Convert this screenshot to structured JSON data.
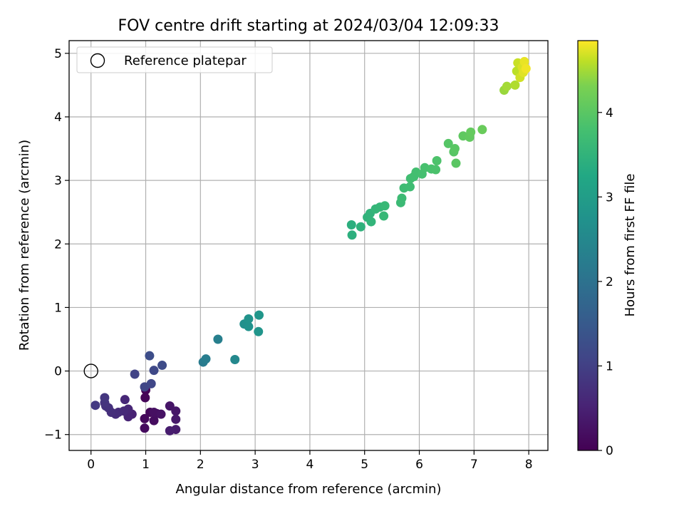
{
  "chart_data": {
    "type": "scatter",
    "title": "FOV centre drift starting at 2024/03/04 12:09:33",
    "xlabel": "Angular distance from reference (arcmin)",
    "ylabel": "Rotation from reference (arcmin)",
    "xlim": [
      -0.4,
      8.35
    ],
    "ylim": [
      -1.25,
      5.2
    ],
    "xticks": [
      0,
      1,
      2,
      3,
      4,
      5,
      6,
      7,
      8
    ],
    "yticks": [
      -1,
      0,
      1,
      2,
      3,
      4,
      5
    ],
    "grid": true,
    "legend": {
      "position": "upper-left",
      "entries": [
        "Reference platepar"
      ]
    },
    "colorbar": {
      "label": "Hours from first FF file",
      "range": [
        0,
        4.85
      ],
      "ticks": [
        0,
        1,
        2,
        3,
        4
      ],
      "colormap": "viridis"
    },
    "reference_point": {
      "x": 0,
      "y": 0
    },
    "points": [
      {
        "x": 1.0,
        "y": -0.3,
        "h": 0.05
      },
      {
        "x": 0.99,
        "y": -0.42,
        "h": 0.07
      },
      {
        "x": 1.08,
        "y": -0.65,
        "h": 0.1
      },
      {
        "x": 0.98,
        "y": -0.75,
        "h": 0.12
      },
      {
        "x": 0.98,
        "y": -0.9,
        "h": 0.15
      },
      {
        "x": 1.15,
        "y": -0.78,
        "h": 0.18
      },
      {
        "x": 1.2,
        "y": -0.67,
        "h": 0.2
      },
      {
        "x": 1.15,
        "y": -0.65,
        "h": 0.23
      },
      {
        "x": 1.28,
        "y": -0.68,
        "h": 0.26
      },
      {
        "x": 1.44,
        "y": -0.55,
        "h": 0.3
      },
      {
        "x": 1.55,
        "y": -0.63,
        "h": 0.33
      },
      {
        "x": 1.55,
        "y": -0.76,
        "h": 0.36
      },
      {
        "x": 1.55,
        "y": -0.92,
        "h": 0.39
      },
      {
        "x": 1.44,
        "y": -0.94,
        "h": 0.42
      },
      {
        "x": 0.75,
        "y": -0.68,
        "h": 0.5
      },
      {
        "x": 0.68,
        "y": -0.72,
        "h": 0.53
      },
      {
        "x": 0.68,
        "y": -0.6,
        "h": 0.56
      },
      {
        "x": 0.62,
        "y": -0.45,
        "h": 0.59
      },
      {
        "x": 0.6,
        "y": -0.63,
        "h": 0.62
      },
      {
        "x": 0.5,
        "y": -0.65,
        "h": 0.65
      },
      {
        "x": 0.45,
        "y": -0.68,
        "h": 0.68
      },
      {
        "x": 0.37,
        "y": -0.65,
        "h": 0.71
      },
      {
        "x": 0.32,
        "y": -0.58,
        "h": 0.74
      },
      {
        "x": 0.27,
        "y": -0.55,
        "h": 0.77
      },
      {
        "x": 0.25,
        "y": -0.5,
        "h": 0.8
      },
      {
        "x": 0.25,
        "y": -0.42,
        "h": 0.83
      },
      {
        "x": 0.08,
        "y": -0.54,
        "h": 0.88
      },
      {
        "x": 0.8,
        "y": -0.05,
        "h": 1.05
      },
      {
        "x": 0.98,
        "y": -0.25,
        "h": 1.1
      },
      {
        "x": 1.1,
        "y": -0.2,
        "h": 1.13
      },
      {
        "x": 1.15,
        "y": 0.01,
        "h": 1.17
      },
      {
        "x": 1.3,
        "y": 0.09,
        "h": 1.2
      },
      {
        "x": 1.07,
        "y": 0.24,
        "h": 1.24
      },
      {
        "x": 2.05,
        "y": 0.14,
        "h": 2.2
      },
      {
        "x": 2.1,
        "y": 0.19,
        "h": 2.25
      },
      {
        "x": 2.32,
        "y": 0.5,
        "h": 2.3
      },
      {
        "x": 2.63,
        "y": 0.18,
        "h": 2.5
      },
      {
        "x": 2.8,
        "y": 0.74,
        "h": 2.7
      },
      {
        "x": 2.88,
        "y": 0.7,
        "h": 2.73
      },
      {
        "x": 2.88,
        "y": 0.82,
        "h": 2.76
      },
      {
        "x": 3.06,
        "y": 0.62,
        "h": 2.8
      },
      {
        "x": 3.07,
        "y": 0.88,
        "h": 2.83
      },
      {
        "x": 4.76,
        "y": 2.3,
        "h": 3.4
      },
      {
        "x": 4.77,
        "y": 2.14,
        "h": 3.42
      },
      {
        "x": 4.93,
        "y": 2.27,
        "h": 3.45
      },
      {
        "x": 5.05,
        "y": 2.42,
        "h": 3.48
      },
      {
        "x": 5.1,
        "y": 2.48,
        "h": 3.5
      },
      {
        "x": 5.12,
        "y": 2.35,
        "h": 3.52
      },
      {
        "x": 5.2,
        "y": 2.55,
        "h": 3.55
      },
      {
        "x": 5.28,
        "y": 2.58,
        "h": 3.57
      },
      {
        "x": 5.35,
        "y": 2.44,
        "h": 3.59
      },
      {
        "x": 5.37,
        "y": 2.6,
        "h": 3.61
      },
      {
        "x": 5.66,
        "y": 2.65,
        "h": 3.65
      },
      {
        "x": 5.68,
        "y": 2.72,
        "h": 3.67
      },
      {
        "x": 5.72,
        "y": 2.88,
        "h": 3.69
      },
      {
        "x": 5.83,
        "y": 2.9,
        "h": 3.71
      },
      {
        "x": 5.84,
        "y": 3.03,
        "h": 3.73
      },
      {
        "x": 5.9,
        "y": 3.06,
        "h": 3.75
      },
      {
        "x": 5.94,
        "y": 3.13,
        "h": 3.77
      },
      {
        "x": 6.05,
        "y": 3.1,
        "h": 3.79
      },
      {
        "x": 6.1,
        "y": 3.2,
        "h": 3.81
      },
      {
        "x": 6.22,
        "y": 3.18,
        "h": 3.83
      },
      {
        "x": 6.3,
        "y": 3.17,
        "h": 3.85
      },
      {
        "x": 6.32,
        "y": 3.31,
        "h": 3.87
      },
      {
        "x": 6.53,
        "y": 3.58,
        "h": 3.95
      },
      {
        "x": 6.63,
        "y": 3.45,
        "h": 3.97
      },
      {
        "x": 6.65,
        "y": 3.5,
        "h": 3.99
      },
      {
        "x": 6.67,
        "y": 3.27,
        "h": 4.0
      },
      {
        "x": 6.8,
        "y": 3.7,
        "h": 4.05
      },
      {
        "x": 6.92,
        "y": 3.68,
        "h": 4.08
      },
      {
        "x": 6.94,
        "y": 3.76,
        "h": 4.1
      },
      {
        "x": 7.15,
        "y": 3.8,
        "h": 4.15
      },
      {
        "x": 7.55,
        "y": 4.42,
        "h": 4.45
      },
      {
        "x": 7.6,
        "y": 4.48,
        "h": 4.5
      },
      {
        "x": 7.75,
        "y": 4.5,
        "h": 4.55
      },
      {
        "x": 7.78,
        "y": 4.72,
        "h": 4.6
      },
      {
        "x": 7.8,
        "y": 4.85,
        "h": 4.65
      },
      {
        "x": 7.84,
        "y": 4.62,
        "h": 4.68
      },
      {
        "x": 7.88,
        "y": 4.78,
        "h": 4.71
      },
      {
        "x": 7.9,
        "y": 4.7,
        "h": 4.74
      },
      {
        "x": 7.92,
        "y": 4.87,
        "h": 4.77
      },
      {
        "x": 7.95,
        "y": 4.76,
        "h": 4.8
      }
    ]
  }
}
